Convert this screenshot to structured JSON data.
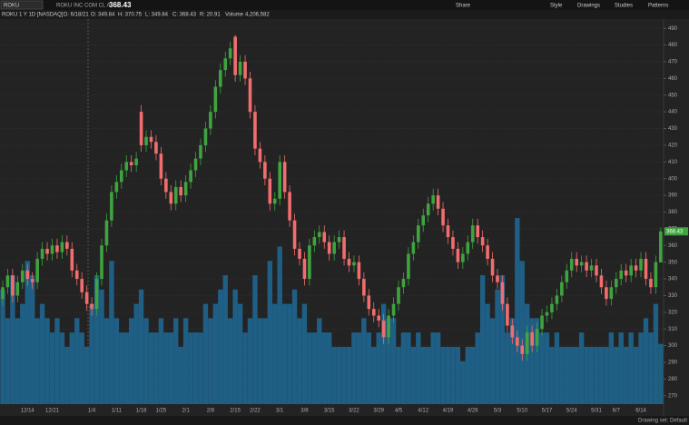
{
  "header": {
    "symbol": "ROKU",
    "company": "ROKU INC COM CL A",
    "last": "368.43",
    "buttons": [
      "Share",
      "Style",
      "Drawings",
      "Studies",
      "Patterns"
    ],
    "info": [
      "ROKU 1 Y 1D [NASDAQ]",
      "D: 6/18/21",
      "O: 349.84",
      "H: 370.75",
      "L: 349.84",
      "C: 368.43",
      "R: 20.91",
      "Volume",
      "4,206,582"
    ]
  },
  "footer": {
    "drawing_set": "Drawing set: Default"
  },
  "chart_data": {
    "type": "candlestick",
    "categories": [
      null,
      null,
      null,
      null,
      null,
      "12/14",
      null,
      null,
      null,
      null,
      "12/21",
      null,
      null,
      null,
      null,
      null,
      null,
      null,
      "1/4",
      null,
      null,
      null,
      null,
      "1/11",
      null,
      null,
      null,
      null,
      "1/18",
      null,
      null,
      null,
      "1/25",
      null,
      null,
      null,
      null,
      "2/1",
      null,
      null,
      null,
      null,
      "2/8",
      null,
      null,
      null,
      null,
      "2/15",
      null,
      null,
      null,
      "2/22",
      null,
      null,
      null,
      null,
      "3/1",
      null,
      null,
      null,
      null,
      "3/8",
      null,
      null,
      null,
      null,
      "3/15",
      null,
      null,
      null,
      null,
      "3/22",
      null,
      null,
      null,
      null,
      "3/29",
      null,
      null,
      null,
      "4/5",
      null,
      null,
      null,
      null,
      "4/12",
      null,
      null,
      null,
      null,
      "4/19",
      null,
      null,
      null,
      null,
      "4/26",
      null,
      null,
      null,
      null,
      "5/3",
      null,
      null,
      null,
      null,
      "5/10",
      null,
      null,
      null,
      null,
      "5/17",
      null,
      null,
      null,
      null,
      "5/24",
      null,
      null,
      null,
      null,
      "5/31",
      null,
      null,
      null,
      "6/7",
      null,
      null,
      null,
      null,
      "6/14",
      null,
      null,
      null,
      null
    ],
    "open": [
      328,
      335,
      342,
      330,
      338,
      345,
      340,
      338,
      352,
      358,
      355,
      360,
      356,
      362,
      358,
      345,
      340,
      332,
      325,
      322,
      340,
      360,
      375,
      392,
      398,
      405,
      410,
      408,
      440,
      420,
      425,
      422,
      415,
      400,
      392,
      385,
      395,
      390,
      398,
      405,
      412,
      420,
      430,
      440,
      455,
      465,
      472,
      485,
      462,
      470,
      460,
      440,
      418,
      410,
      400,
      385,
      388,
      410,
      392,
      375,
      358,
      352,
      340,
      360,
      365,
      368,
      362,
      355,
      362,
      365,
      352,
      348,
      350,
      340,
      330,
      322,
      318,
      315,
      305,
      318,
      325,
      335,
      340,
      355,
      362,
      372,
      378,
      385,
      390,
      382,
      372,
      365,
      358,
      350,
      355,
      362,
      372,
      365,
      360,
      352,
      342,
      338,
      325,
      312,
      305,
      300,
      295,
      308,
      300,
      310,
      318,
      320,
      325,
      330,
      338,
      345,
      352,
      348,
      350,
      345,
      348,
      342,
      335,
      328,
      335,
      340,
      345,
      342,
      348,
      345,
      352,
      340,
      335,
      349.84
    ],
    "high": [
      339,
      346,
      346,
      342,
      349,
      349,
      344,
      356,
      362,
      362,
      364,
      364,
      366,
      366,
      362,
      349,
      344,
      336,
      329,
      344,
      364,
      379,
      396,
      402,
      409,
      414,
      414,
      416,
      444,
      429,
      429,
      426,
      419,
      404,
      396,
      399,
      399,
      402,
      409,
      416,
      424,
      434,
      444,
      459,
      469,
      476,
      482,
      486,
      474,
      474,
      464,
      444,
      422,
      414,
      404,
      392,
      414,
      414,
      396,
      379,
      362,
      356,
      364,
      369,
      372,
      372,
      366,
      366,
      369,
      369,
      356,
      354,
      354,
      344,
      334,
      326,
      322,
      319,
      322,
      329,
      339,
      344,
      359,
      366,
      376,
      382,
      389,
      394,
      394,
      386,
      376,
      369,
      362,
      359,
      366,
      376,
      376,
      369,
      364,
      356,
      346,
      342,
      329,
      316,
      309,
      304,
      312,
      312,
      314,
      322,
      324,
      329,
      334,
      342,
      349,
      356,
      356,
      354,
      354,
      352,
      352,
      346,
      339,
      339,
      344,
      349,
      349,
      352,
      352,
      356,
      356,
      344,
      354,
      370.75
    ],
    "low": [
      324,
      331,
      326,
      326,
      334,
      336,
      334,
      334,
      348,
      351,
      351,
      352,
      352,
      354,
      341,
      336,
      328,
      321,
      318,
      318,
      336,
      356,
      371,
      388,
      394,
      401,
      404,
      404,
      416,
      416,
      418,
      411,
      396,
      388,
      381,
      381,
      386,
      386,
      394,
      401,
      408,
      416,
      426,
      436,
      451,
      461,
      468,
      458,
      458,
      456,
      436,
      414,
      406,
      396,
      381,
      381,
      384,
      388,
      371,
      354,
      348,
      336,
      336,
      356,
      361,
      358,
      351,
      351,
      358,
      348,
      344,
      344,
      336,
      326,
      318,
      314,
      311,
      301,
      301,
      314,
      321,
      331,
      336,
      351,
      358,
      368,
      374,
      381,
      378,
      368,
      361,
      354,
      346,
      346,
      351,
      358,
      361,
      356,
      348,
      338,
      334,
      321,
      308,
      301,
      296,
      291,
      291,
      296,
      296,
      306,
      314,
      316,
      321,
      326,
      334,
      341,
      344,
      344,
      341,
      341,
      338,
      331,
      324,
      324,
      331,
      336,
      338,
      338,
      341,
      341,
      336,
      331,
      331,
      349.84
    ],
    "close": [
      335,
      342,
      330,
      338,
      345,
      340,
      338,
      352,
      358,
      355,
      360,
      356,
      362,
      358,
      345,
      340,
      332,
      325,
      322,
      340,
      360,
      375,
      392,
      398,
      405,
      410,
      408,
      412,
      420,
      425,
      422,
      415,
      400,
      392,
      385,
      395,
      390,
      398,
      405,
      412,
      420,
      430,
      440,
      455,
      465,
      472,
      478,
      462,
      470,
      460,
      440,
      418,
      410,
      400,
      385,
      388,
      410,
      392,
      375,
      358,
      352,
      340,
      360,
      365,
      368,
      362,
      355,
      362,
      365,
      352,
      348,
      350,
      340,
      330,
      322,
      318,
      315,
      305,
      318,
      325,
      335,
      340,
      355,
      362,
      372,
      378,
      385,
      390,
      382,
      372,
      365,
      358,
      350,
      355,
      362,
      372,
      365,
      360,
      352,
      342,
      338,
      325,
      312,
      305,
      300,
      295,
      308,
      300,
      310,
      318,
      320,
      325,
      330,
      338,
      345,
      352,
      348,
      350,
      345,
      348,
      342,
      335,
      328,
      335,
      340,
      345,
      342,
      348,
      345,
      352,
      340,
      335,
      350,
      368.43
    ],
    "volume": [
      8,
      6,
      9,
      6,
      7,
      10,
      9,
      6,
      7,
      6,
      5,
      6,
      5,
      4,
      5,
      6,
      5,
      4,
      7,
      9,
      8,
      6,
      10,
      6,
      5,
      5,
      6,
      7,
      8,
      6,
      5,
      5,
      6,
      5,
      5,
      6,
      4,
      6,
      5,
      5,
      5,
      7,
      6,
      7,
      8,
      9,
      6,
      8,
      7,
      5,
      6,
      9,
      6,
      6,
      10,
      7,
      11,
      7,
      7,
      8,
      6,
      7,
      5,
      5,
      6,
      5,
      5,
      4,
      4,
      4,
      4,
      5,
      5,
      6,
      5,
      4,
      5,
      7,
      6,
      6,
      4,
      5,
      5,
      4,
      5,
      4,
      4,
      5,
      5,
      4,
      4,
      4,
      4,
      3,
      4,
      4,
      5,
      9,
      7,
      6,
      8,
      9,
      5,
      6,
      13,
      10,
      7,
      6,
      6,
      5,
      5,
      4,
      5,
      4,
      4,
      4,
      4,
      5,
      4,
      4,
      4,
      4,
      4,
      5,
      4,
      5,
      4,
      5,
      4,
      5,
      6,
      5,
      7,
      4.206582
    ],
    "ylim": [
      265,
      495
    ],
    "yticks": [
      270,
      280,
      290,
      300,
      310,
      320,
      330,
      340,
      350,
      360,
      370,
      380,
      390,
      400,
      410,
      420,
      430,
      440,
      450,
      460,
      470,
      480,
      490
    ],
    "grid": true,
    "up_color": "#3fa33f",
    "down_color": "#f26d6d",
    "volume_color": "#1f5f85"
  }
}
